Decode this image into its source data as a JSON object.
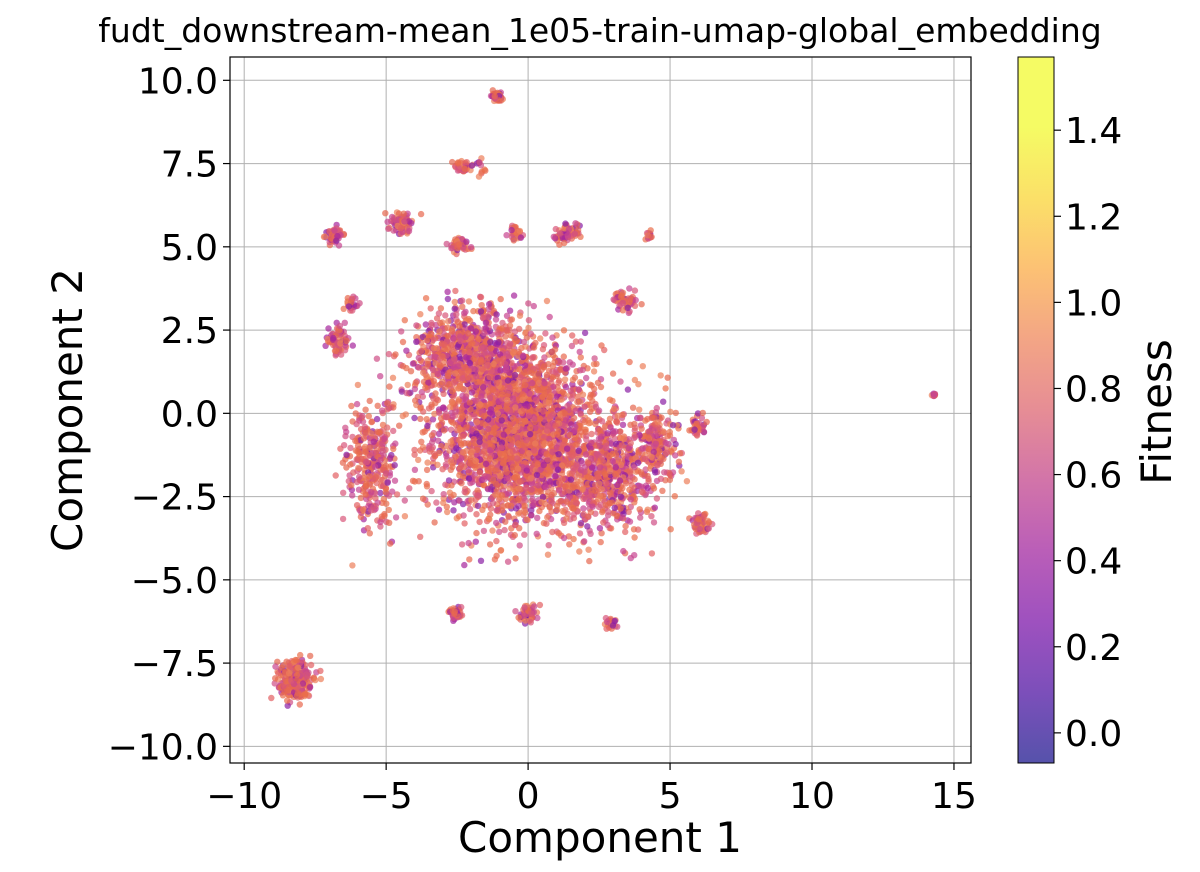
{
  "chart_data": {
    "type": "scatter",
    "title": "fudt_downstream-mean_1e05-train-umap-global_embedding",
    "xlabel": "Component 1",
    "ylabel": "Component 2",
    "xlim": [
      -10.5,
      15.6
    ],
    "ylim": [
      -10.5,
      10.7
    ],
    "x_ticks": [
      -10,
      -5,
      0,
      5,
      10,
      15
    ],
    "x_tick_labels": [
      "−10",
      "−5",
      "0",
      "5",
      "10",
      "15"
    ],
    "y_ticks": [
      -10,
      -7.5,
      -5,
      -2.5,
      0,
      2.5,
      5,
      7.5,
      10
    ],
    "y_tick_labels": [
      "−10.0",
      "−7.5",
      "−5.0",
      "−2.5",
      "0.0",
      "2.5",
      "5.0",
      "7.5",
      "10.0"
    ],
    "grid": true,
    "colorbar": {
      "label": "Fitness",
      "colormap": "plasma",
      "range": [
        -0.07,
        1.57
      ],
      "ticks": [
        0.0,
        0.2,
        0.4,
        0.6,
        0.8,
        1.0,
        1.2,
        1.4
      ],
      "tick_labels": [
        "0.0",
        "0.2",
        "0.4",
        "0.6",
        "0.8",
        "1.0",
        "1.2",
        "1.4"
      ]
    },
    "point_alpha": 0.7,
    "dominant_point_color": "#e8684f",
    "low_fitness_point_color": "#8a1fa4",
    "clusters": [
      {
        "center": [
          -0.4,
          -0.6
        ],
        "spread": [
          3.4,
          3.0
        ],
        "count": 2600
      },
      {
        "center": [
          -2.2,
          1.8
        ],
        "spread": [
          2.4,
          1.6
        ],
        "count": 700
      },
      {
        "center": [
          2.8,
          -1.8
        ],
        "spread": [
          2.2,
          2.0
        ],
        "count": 600
      },
      {
        "center": [
          -5.5,
          -1.5
        ],
        "spread": [
          1.1,
          2.2
        ],
        "count": 300
      },
      {
        "center": [
          4.6,
          -0.8
        ],
        "spread": [
          0.9,
          1.4
        ],
        "count": 150
      },
      {
        "center": [
          6.1,
          -3.3
        ],
        "spread": [
          0.35,
          0.35
        ],
        "count": 60
      },
      {
        "center": [
          6.0,
          -0.4
        ],
        "spread": [
          0.3,
          0.35
        ],
        "count": 40
      },
      {
        "center": [
          3.4,
          3.4
        ],
        "spread": [
          0.45,
          0.35
        ],
        "count": 50
      },
      {
        "center": [
          -6.7,
          2.2
        ],
        "spread": [
          0.45,
          0.5
        ],
        "count": 70
      },
      {
        "center": [
          -6.2,
          3.3
        ],
        "spread": [
          0.3,
          0.3
        ],
        "count": 25
      },
      {
        "center": [
          0.0,
          -6.0
        ],
        "spread": [
          0.35,
          0.3
        ],
        "count": 50
      },
      {
        "center": [
          -2.6,
          -6.0
        ],
        "spread": [
          0.4,
          0.25
        ],
        "count": 35
      },
      {
        "center": [
          2.9,
          -6.3
        ],
        "spread": [
          0.3,
          0.2
        ],
        "count": 25
      },
      {
        "center": [
          -6.8,
          5.35
        ],
        "spread": [
          0.35,
          0.28
        ],
        "count": 60
      },
      {
        "center": [
          -4.5,
          5.7
        ],
        "spread": [
          0.55,
          0.35
        ],
        "count": 70
      },
      {
        "center": [
          -2.4,
          5.1
        ],
        "spread": [
          0.45,
          0.3
        ],
        "count": 45
      },
      {
        "center": [
          -0.4,
          5.4
        ],
        "spread": [
          0.3,
          0.25
        ],
        "count": 30
      },
      {
        "center": [
          1.4,
          5.4
        ],
        "spread": [
          0.5,
          0.3
        ],
        "count": 70
      },
      {
        "center": [
          4.3,
          5.35
        ],
        "spread": [
          0.15,
          0.15
        ],
        "count": 15
      },
      {
        "center": [
          -2.3,
          7.4
        ],
        "spread": [
          0.35,
          0.22
        ],
        "count": 50
      },
      {
        "center": [
          -1.1,
          9.5
        ],
        "spread": [
          0.25,
          0.18
        ],
        "count": 50
      },
      {
        "center": [
          -1.6,
          7.4
        ],
        "spread": [
          0.3,
          0.5
        ],
        "count": 12
      },
      {
        "center": [
          -8.2,
          -8.0
        ],
        "spread": [
          0.7,
          0.75
        ],
        "count": 300
      },
      {
        "center": [
          14.3,
          0.55
        ],
        "spread": [
          0.08,
          0.06
        ],
        "count": 10
      }
    ]
  }
}
